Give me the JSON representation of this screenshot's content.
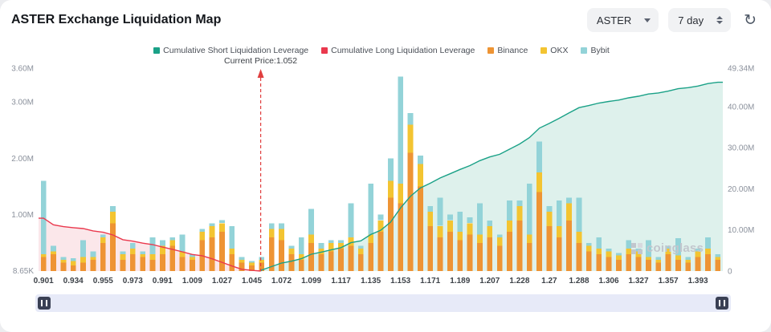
{
  "header": {
    "title": "ASTER Exchange Liquidation Map",
    "symbol": "ASTER",
    "timeframe": "7 day"
  },
  "legend": [
    {
      "label": "Cumulative Short Liquidation Leverage",
      "color": "#1aa187"
    },
    {
      "label": "Cumulative Long Liquidation Leverage",
      "color": "#ea384d"
    },
    {
      "label": "Binance",
      "color": "#ee9434"
    },
    {
      "label": "OKX",
      "color": "#f3c431"
    },
    {
      "label": "Bybit",
      "color": "#93d3d8"
    }
  ],
  "current_price_label": "Current Price:1.052",
  "watermark": "coinglass",
  "chart_data": {
    "type": "mixed",
    "units": "M",
    "bin_count": 69,
    "x_tick_step": 3,
    "x_tick_labels": [
      "0.901",
      "0.934",
      "0.955",
      "0.973",
      "0.991",
      "1.009",
      "1.027",
      "1.045",
      "1.072",
      "1.099",
      "1.117",
      "1.135",
      "1.153",
      "1.171",
      "1.189",
      "1.207",
      "1.228",
      "1.27",
      "1.288",
      "1.306",
      "1.327",
      "1.357",
      "1.393"
    ],
    "current_price": 1.052,
    "current_price_bin": 22.4,
    "left_axis": {
      "max": 3.6,
      "ticks": [
        {
          "label": "8.65K",
          "value": 0.00865
        },
        {
          "label": "1.00M",
          "value": 1
        },
        {
          "label": "2.00M",
          "value": 2
        },
        {
          "label": "3.00M",
          "value": 3
        },
        {
          "label": "3.60M",
          "value": 3.6
        }
      ]
    },
    "right_axis": {
      "max": 49.34,
      "ticks": [
        {
          "label": "0",
          "value": 0
        },
        {
          "label": "10.00M",
          "value": 10
        },
        {
          "label": "20.00M",
          "value": 20
        },
        {
          "label": "30.00M",
          "value": 30
        },
        {
          "label": "40.00M",
          "value": 40
        },
        {
          "label": "49.34M",
          "value": 49.34
        }
      ]
    },
    "bar_series": [
      {
        "name": "Binance",
        "color": "#ee9434",
        "values": [
          0.25,
          0.3,
          0.15,
          0.1,
          0.15,
          0.2,
          0.5,
          0.85,
          0.2,
          0.3,
          0.25,
          0.2,
          0.3,
          0.45,
          0.25,
          0.2,
          0.55,
          0.6,
          0.7,
          0.3,
          0.15,
          0.1,
          0.15,
          0.6,
          0.55,
          0.3,
          0.2,
          0.5,
          0.3,
          0.35,
          0.4,
          0.45,
          0.3,
          0.5,
          0.7,
          1.3,
          1.2,
          2.1,
          1.5,
          0.8,
          0.6,
          0.7,
          0.55,
          0.65,
          0.5,
          0.6,
          0.45,
          0.7,
          0.9,
          0.5,
          1.4,
          0.8,
          0.6,
          0.9,
          0.5,
          0.35,
          0.3,
          0.25,
          0.2,
          0.3,
          0.25,
          0.2,
          0.15,
          0.3,
          0.2,
          0.15,
          0.25,
          0.3,
          0.2
        ]
      },
      {
        "name": "OKX",
        "color": "#f3c431",
        "values": [
          0.05,
          0.05,
          0.05,
          0.08,
          0.1,
          0.05,
          0.1,
          0.2,
          0.1,
          0.1,
          0.05,
          0.1,
          0.15,
          0.1,
          0.1,
          0.05,
          0.15,
          0.2,
          0.15,
          0.1,
          0.05,
          0.05,
          0.05,
          0.15,
          0.2,
          0.1,
          0.1,
          0.15,
          0.1,
          0.15,
          0.1,
          0.15,
          0.1,
          0.15,
          0.2,
          0.3,
          0.35,
          0.5,
          0.4,
          0.25,
          0.2,
          0.2,
          0.15,
          0.2,
          0.15,
          0.2,
          0.15,
          0.2,
          0.25,
          0.15,
          0.35,
          0.25,
          0.2,
          0.3,
          0.2,
          0.1,
          0.1,
          0.1,
          0.08,
          0.1,
          0.1,
          0.05,
          0.05,
          0.1,
          0.08,
          0.05,
          0.1,
          0.1,
          0.05
        ]
      },
      {
        "name": "Bybit",
        "color": "#93d3d8",
        "values": [
          1.3,
          0.1,
          0.05,
          0.05,
          0.3,
          0.1,
          0.05,
          0.1,
          0.05,
          0.1,
          0.05,
          0.3,
          0.1,
          0.05,
          0.3,
          0.05,
          0.05,
          0.05,
          0.05,
          0.4,
          0.05,
          0.03,
          0.05,
          0.1,
          0.1,
          0.05,
          0.3,
          0.45,
          0.1,
          0.05,
          0.05,
          0.6,
          0.05,
          0.9,
          0.1,
          0.4,
          1.9,
          0.2,
          0.15,
          0.1,
          0.5,
          0.1,
          0.35,
          0.1,
          0.55,
          0.1,
          0.05,
          0.35,
          0.1,
          0.9,
          0.55,
          0.1,
          0.45,
          0.1,
          0.6,
          0.05,
          0.2,
          0.05,
          0.04,
          0.15,
          0.05,
          0.3,
          0.05,
          0.05,
          0.3,
          0.05,
          0.05,
          0.2,
          0.05
        ]
      }
    ],
    "lines": [
      {
        "name": "Cumulative Long Liquidation Leverage",
        "color": "#ea384d",
        "fill": "#fbe7ea",
        "side": "left_of_current_price",
        "derived": "cumulative_sum_of_bar_totals_toward_lower_prices"
      },
      {
        "name": "Cumulative Short Liquidation Leverage",
        "color": "#1aa187",
        "fill": "#def1ec",
        "side": "right_of_current_price",
        "derived": "cumulative_sum_of_bar_totals_toward_higher_prices"
      }
    ],
    "current_price_line_color": "#e03e3e"
  }
}
